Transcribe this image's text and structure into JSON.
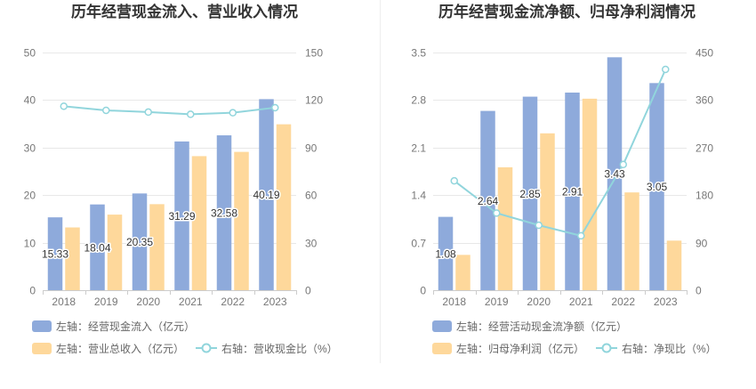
{
  "chart_data": [
    {
      "type": "bar",
      "title": "历年经营现金流入、营业收入情况",
      "categories": [
        "2018",
        "2019",
        "2020",
        "2021",
        "2022",
        "2023"
      ],
      "y_left": {
        "range": [
          0,
          50
        ],
        "ticks": [
          0,
          10,
          20,
          30,
          40,
          50
        ]
      },
      "y_right": {
        "range": [
          0,
          150
        ],
        "ticks": [
          0,
          30,
          60,
          90,
          120,
          150
        ]
      },
      "grid": true,
      "legend_position": "bottom",
      "series": [
        {
          "name": "左轴：经营现金流入（亿元）",
          "type": "bar",
          "axis": "left",
          "color": "#8eaadb",
          "show_labels": true,
          "values": [
            15.33,
            18.04,
            20.35,
            31.29,
            32.58,
            40.19
          ]
        },
        {
          "name": "左轴：营业总收入（亿元）",
          "type": "bar",
          "axis": "left",
          "color": "#fed89b",
          "show_labels": false,
          "values": [
            13.2,
            15.9,
            18.1,
            28.2,
            29.1,
            34.9
          ]
        },
        {
          "name": "右轴：营收现金比（%）",
          "type": "line",
          "axis": "right",
          "color": "#91d5dc",
          "show_labels": false,
          "values": [
            116.1,
            113.5,
            112.4,
            111.0,
            112.0,
            115.2
          ]
        }
      ]
    },
    {
      "type": "bar",
      "title": "历年经营现金流净额、归母净利润情况",
      "categories": [
        "2018",
        "2019",
        "2020",
        "2021",
        "2022",
        "2023"
      ],
      "y_left": {
        "range": [
          0,
          3.5
        ],
        "ticks": [
          0,
          0.7,
          1.4,
          2.1,
          2.8,
          3.5
        ]
      },
      "y_right": {
        "range": [
          0,
          450
        ],
        "ticks": [
          0,
          90,
          180,
          270,
          360,
          450
        ]
      },
      "grid": true,
      "legend_position": "bottom",
      "series": [
        {
          "name": "左轴：经营活动现金流净额（亿元）",
          "type": "bar",
          "axis": "left",
          "color": "#8eaadb",
          "show_labels": true,
          "values": [
            1.08,
            2.64,
            2.85,
            2.91,
            3.43,
            3.05
          ]
        },
        {
          "name": "左轴：归母净利润（亿元）",
          "type": "bar",
          "axis": "left",
          "color": "#fed89b",
          "show_labels": false,
          "values": [
            0.52,
            1.81,
            2.31,
            2.82,
            1.44,
            0.73
          ]
        },
        {
          "name": "右轴：净现比（%）",
          "type": "line",
          "axis": "right",
          "color": "#91d5dc",
          "show_labels": false,
          "values": [
            207,
            146,
            123,
            103,
            238,
            418
          ]
        }
      ]
    }
  ]
}
